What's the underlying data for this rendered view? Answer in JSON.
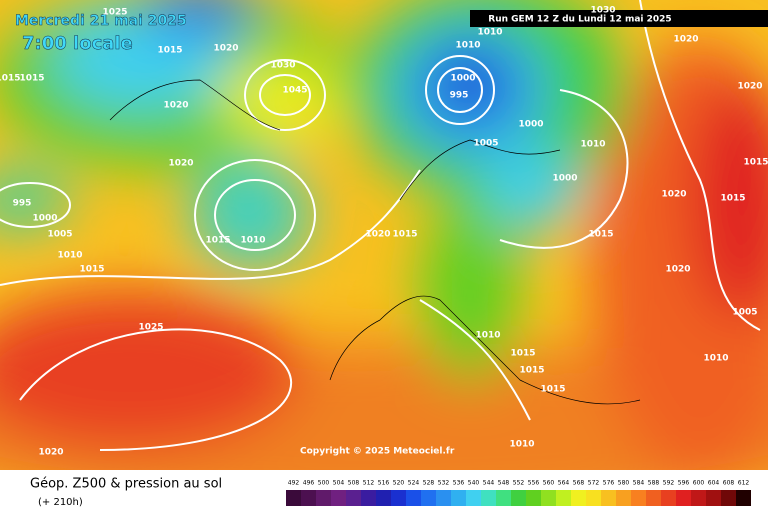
{
  "header": {
    "date": "Mercredi 21 mai 2025",
    "time": "7:00 locale",
    "run": "Run GEM 12 Z du Lundi 12 mai 2025"
  },
  "isobar_labels": [
    "1025",
    "1015",
    "1020",
    "1015",
    "1015",
    "1020",
    "1030",
    "1045",
    "1010",
    "1030",
    "1020",
    "1010",
    "1000",
    "995",
    "1000",
    "1005",
    "1010",
    "1020",
    "1015",
    "1020",
    "995",
    "1000",
    "1005",
    "1010",
    "1015",
    "1015",
    "1010",
    "1020",
    "1015",
    "1000",
    "1020",
    "1015",
    "1015",
    "1020",
    "1025",
    "1010",
    "1015",
    "1015",
    "1015",
    "1005",
    "1010",
    "1010",
    "1020"
  ],
  "copyright": "Copyright © 2025 Meteociel.fr",
  "footer": {
    "title": "Géop. Z500 & pression au sol",
    "subtitle": "(+ 210h)"
  },
  "scale": [
    {
      "value": 492,
      "color": "#3a0a3a"
    },
    {
      "value": 496,
      "color": "#4c1050"
    },
    {
      "value": 500,
      "color": "#601a6a"
    },
    {
      "value": 504,
      "color": "#702080"
    },
    {
      "value": 508,
      "color": "#5a2090"
    },
    {
      "value": 512,
      "color": "#3a1ca0"
    },
    {
      "value": 516,
      "color": "#2020b0"
    },
    {
      "value": 520,
      "color": "#1a30d0"
    },
    {
      "value": 524,
      "color": "#1a50e8"
    },
    {
      "value": 528,
      "color": "#2070f0"
    },
    {
      "value": 532,
      "color": "#2a90f0"
    },
    {
      "value": 536,
      "color": "#30b0f0"
    },
    {
      "value": 540,
      "color": "#40d0f0"
    },
    {
      "value": 544,
      "color": "#40e0c0"
    },
    {
      "value": 548,
      "color": "#40e080"
    },
    {
      "value": 552,
      "color": "#40d040"
    },
    {
      "value": 556,
      "color": "#60d020"
    },
    {
      "value": 560,
      "color": "#90e020"
    },
    {
      "value": 564,
      "color": "#c0f020"
    },
    {
      "value": 568,
      "color": "#f0f020"
    },
    {
      "value": 572,
      "color": "#f8e020"
    },
    {
      "value": 576,
      "color": "#f8c020"
    },
    {
      "value": 580,
      "color": "#f8a020"
    },
    {
      "value": 584,
      "color": "#f88020"
    },
    {
      "value": 588,
      "color": "#f06020"
    },
    {
      "value": 592,
      "color": "#e84020"
    },
    {
      "value": 596,
      "color": "#e02020"
    },
    {
      "value": 600,
      "color": "#c01818"
    },
    {
      "value": 604,
      "color": "#a01010"
    },
    {
      "value": 608,
      "color": "#700808"
    },
    {
      "value": 612,
      "color": "#200000"
    }
  ]
}
